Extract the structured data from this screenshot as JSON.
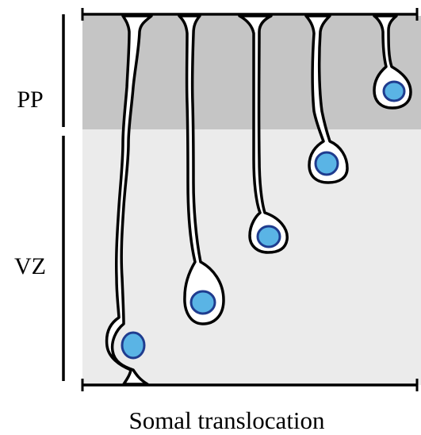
{
  "layers": [
    {
      "id": "pp",
      "label": "PP",
      "color": "#c5c5c5"
    },
    {
      "id": "vz",
      "label": "VZ",
      "color": "#ebebeb"
    }
  ],
  "caption": "Somal translocation",
  "colors": {
    "outline": "#000000",
    "cell_fill": "#ffffff",
    "nucleus_fill": "#5ab4e5",
    "nucleus_stroke": "#1f3c8f"
  },
  "cells": [
    {
      "name": "cell-1"
    },
    {
      "name": "cell-2"
    },
    {
      "name": "cell-3"
    },
    {
      "name": "cell-4"
    },
    {
      "name": "cell-5"
    }
  ]
}
